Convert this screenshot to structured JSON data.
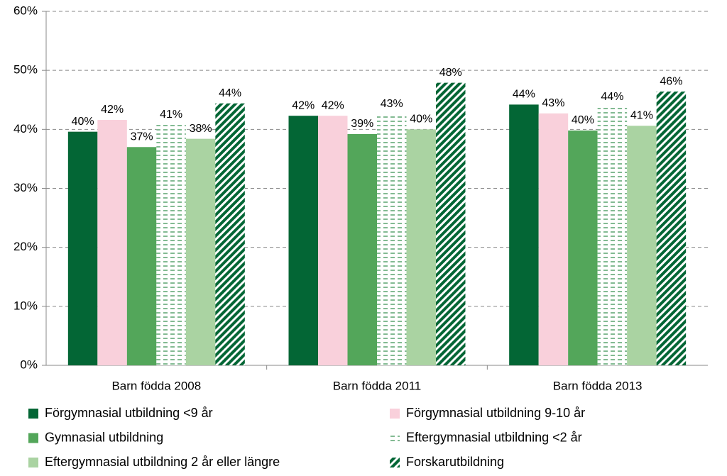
{
  "chart_data": {
    "type": "bar",
    "categories": [
      "Barn födda 2008",
      "Barn födda 2011",
      "Barn födda 2013"
    ],
    "series": [
      {
        "name": "Förgymnasial utbildning  <9 år",
        "color": "#036635",
        "pattern": "solid",
        "values": [
          39.6,
          42.3,
          44.2
        ],
        "value_labels": [
          "40%",
          "42%",
          "44%"
        ]
      },
      {
        "name": "Förgymnasial utbildning 9-10 år",
        "color": "#f9d0db",
        "pattern": "solid",
        "values": [
          41.6,
          42.3,
          42.7
        ],
        "value_labels": [
          "42%",
          "42%",
          "43%"
        ]
      },
      {
        "name": "Gymnasial utbildning",
        "color": "#53a65a",
        "pattern": "solid",
        "values": [
          37.0,
          39.2,
          39.8
        ],
        "value_labels": [
          "37%",
          "39%",
          "40%"
        ]
      },
      {
        "name": "Eftergymnasial utbildning <2 år",
        "color": "#2e8b4a",
        "pattern": "dashes",
        "values": [
          40.8,
          42.6,
          43.8
        ],
        "value_labels": [
          "41%",
          "43%",
          "44%"
        ]
      },
      {
        "name": "Eftergymnasial utbildning 2 år eller längre",
        "color": "#aad3a2",
        "pattern": "solid",
        "values": [
          38.4,
          40.0,
          40.6
        ],
        "value_labels": [
          "38%",
          "40%",
          "41%"
        ]
      },
      {
        "name": "Forskarutbildning",
        "color": "#036635",
        "pattern": "diagonal",
        "values": [
          44.4,
          47.9,
          46.4
        ],
        "value_labels": [
          "44%",
          "48%",
          "46%"
        ]
      }
    ],
    "ylim": [
      0,
      60
    ],
    "yticks": [
      {
        "value": 0,
        "label": "0%"
      },
      {
        "value": 10,
        "label": "10%"
      },
      {
        "value": 20,
        "label": "20%"
      },
      {
        "value": 30,
        "label": "30%"
      },
      {
        "value": 40,
        "label": "40%"
      },
      {
        "value": 50,
        "label": "50%"
      },
      {
        "value": 60,
        "label": "60%"
      }
    ],
    "grid": true
  }
}
